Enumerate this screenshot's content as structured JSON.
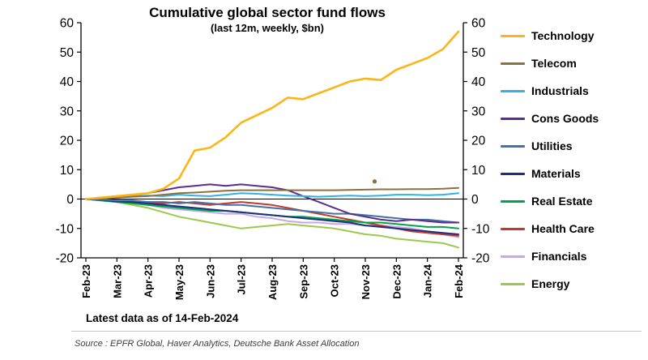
{
  "footer": {
    "latest_label": "Latest data as of 14-Feb-2024",
    "source_label": "Source : EPFR Global, Haver Analytics, Deutsche Bank Asset Allocation"
  },
  "chart_data": {
    "type": "line",
    "title": "Cumulative global sector fund flows",
    "subtitle": "(last 12m, weekly, $bn)",
    "xlabel": "",
    "ylabel": "",
    "ylim": [
      -20,
      60
    ],
    "grid": false,
    "zero_line": true,
    "legend_position": "right",
    "x_tick_labels": [
      "Feb-23",
      "Mar-23",
      "Apr-23",
      "May-23",
      "Jun-23",
      "Jul-23",
      "Aug-23",
      "Sep-23",
      "Oct-23",
      "Nov-23",
      "Dec-23",
      "Jan-24",
      "Feb-24"
    ],
    "y_tick_labels": [
      60,
      50,
      40,
      30,
      20,
      10,
      0,
      -10,
      -20
    ],
    "axis_labels_both_sides": true,
    "points_per_series": 25,
    "series": [
      {
        "name": "Technology",
        "color": "#FDB515",
        "width": 2.6,
        "values": [
          0,
          0.5,
          1,
          1.5,
          2,
          3.5,
          7,
          16.5,
          17.5,
          21,
          26,
          28.5,
          31,
          34.5,
          34,
          36,
          38,
          40,
          41,
          40.5,
          44,
          46,
          48,
          51,
          57
        ]
      },
      {
        "name": "Telecom",
        "color": "#8A7140",
        "width": 2,
        "values": [
          0,
          0.2,
          0.5,
          0.8,
          1,
          1.5,
          2,
          2.2,
          2.5,
          2.8,
          3,
          3,
          3,
          3,
          3,
          3,
          3,
          3.1,
          3.2,
          3.3,
          3.3,
          3.4,
          3.4,
          3.5,
          3.8
        ]
      },
      {
        "name": "Industrials",
        "color": "#33B1E6",
        "width": 2,
        "values": [
          0,
          0.3,
          0.8,
          1,
          1.2,
          1,
          1.5,
          1.2,
          1,
          1.5,
          2,
          1.8,
          1.5,
          1.2,
          1,
          0.8,
          1,
          1.2,
          1,
          1.2,
          1.5,
          1.5,
          1.3,
          1.5,
          2
        ]
      },
      {
        "name": "Cons Goods",
        "color": "#5B2D8E",
        "width": 2,
        "values": [
          0,
          0.5,
          1,
          1.5,
          2,
          3,
          4,
          4.5,
          5,
          4.5,
          5,
          4.5,
          4,
          3,
          1,
          -1,
          -3,
          -5,
          -6,
          -7,
          -7.5,
          -7,
          -7.5,
          -8,
          -8
        ]
      },
      {
        "name": "Utilities",
        "color": "#4472A8",
        "width": 2,
        "values": [
          0,
          -0.2,
          -0.5,
          -0.5,
          -1,
          -1,
          -1.5,
          -1,
          -1.5,
          -2,
          -2,
          -2.5,
          -3,
          -3.5,
          -4,
          -4.5,
          -5,
          -5,
          -5.5,
          -6,
          -6.5,
          -7,
          -7,
          -7.5,
          -8
        ]
      },
      {
        "name": "Materials",
        "color": "#1F2F7F",
        "width": 2,
        "values": [
          0,
          -0.3,
          -0.8,
          -1,
          -1.5,
          -2,
          -2.5,
          -3,
          -3.5,
          -4,
          -4.5,
          -5,
          -5.5,
          -6,
          -6.5,
          -7,
          -7.5,
          -8,
          -9,
          -9.5,
          -10,
          -10.5,
          -11,
          -11.5,
          -12
        ]
      },
      {
        "name": "Real Estate",
        "color": "#00A44A",
        "width": 2,
        "values": [
          0,
          -0.5,
          -1,
          -1.5,
          -2,
          -2.5,
          -3,
          -3.5,
          -4,
          -4,
          -4.5,
          -5,
          -5.5,
          -6,
          -6,
          -6.5,
          -7,
          -7.5,
          -8,
          -8,
          -8.5,
          -9,
          -9.5,
          -9.5,
          -10
        ]
      },
      {
        "name": "Health Care",
        "color": "#C5392B",
        "width": 2,
        "values": [
          0,
          -0.3,
          -0.5,
          -1,
          -1,
          -1.5,
          -1,
          -1.5,
          -2,
          -1.5,
          -1,
          -1.5,
          -2,
          -3,
          -4,
          -5,
          -6,
          -7,
          -8,
          -9,
          -10,
          -11,
          -11.5,
          -12,
          -12.5
        ]
      },
      {
        "name": "Financials",
        "color": "#C9A7E4",
        "width": 2,
        "values": [
          0,
          -0.5,
          -1,
          -1.5,
          -2,
          -3,
          -3.5,
          -4,
          -4.5,
          -5,
          -5,
          -6,
          -6.5,
          -7.5,
          -8,
          -8,
          -8.5,
          -8.5,
          -9,
          -9,
          -9.5,
          -10,
          -11,
          -12,
          -13
        ]
      },
      {
        "name": "Energy",
        "color": "#9DC94B",
        "width": 2,
        "values": [
          0,
          -0.5,
          -1,
          -2,
          -3,
          -4.5,
          -6,
          -7,
          -8,
          -9,
          -10,
          -9.5,
          -9,
          -8.5,
          -9,
          -9.5,
          -10,
          -11,
          -12,
          -12.5,
          -13.5,
          -14,
          -14.5,
          -15,
          -16.5
        ]
      }
    ],
    "isolated_point": {
      "series": "Telecom",
      "month_index": 9.3,
      "value": 6
    }
  }
}
